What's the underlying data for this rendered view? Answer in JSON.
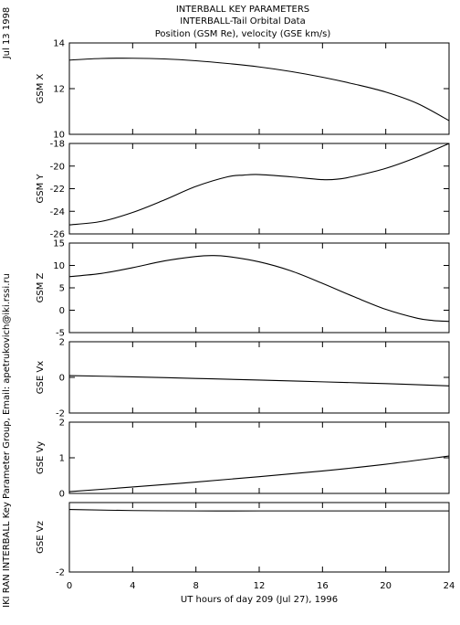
{
  "header": {
    "title_lines": [
      "INTERBALL KEY PARAMETERS",
      "INTERBALL-Tail Orbital Data",
      "Position (GSM Re), velocity (GSE km/s)"
    ],
    "date_label": "Jul 13 1998",
    "credit_label": "IKI RAN INTERBALL Key Parameter Group, Email: apetrukovich@iki.rssi.ru"
  },
  "chart_data": {
    "type": "line",
    "xlabel": "UT hours of day 209 (Jul 27), 1996",
    "xlim": [
      0,
      24
    ],
    "xticks": [
      0,
      4,
      8,
      12,
      16,
      20,
      24
    ],
    "panels": [
      {
        "ylabel": "GSM X",
        "ylim": [
          10,
          14
        ],
        "yticks": [
          10,
          12,
          14
        ],
        "x": [
          0,
          2,
          4,
          6,
          8,
          10,
          12,
          14,
          16,
          18,
          20,
          22,
          24
        ],
        "values": [
          13.25,
          13.32,
          13.33,
          13.3,
          13.22,
          13.1,
          12.95,
          12.75,
          12.5,
          12.2,
          11.85,
          11.35,
          10.6
        ]
      },
      {
        "ylabel": "GSM Y",
        "ylim": [
          -26,
          -18
        ],
        "yticks": [
          -26,
          -24,
          -22,
          -20,
          -18
        ],
        "x": [
          0,
          2,
          4,
          6,
          8,
          10,
          11,
          12,
          14,
          16,
          17,
          18,
          20,
          22,
          24
        ],
        "values": [
          -25.2,
          -24.9,
          -24.1,
          -23.0,
          -21.8,
          -20.95,
          -20.8,
          -20.75,
          -20.95,
          -21.2,
          -21.15,
          -20.9,
          -20.2,
          -19.2,
          -18.0
        ]
      },
      {
        "ylabel": "GSM Z",
        "ylim": [
          -5,
          15
        ],
        "yticks": [
          -5,
          0,
          5,
          10,
          15
        ],
        "x": [
          0,
          2,
          4,
          6,
          8,
          9,
          10,
          12,
          14,
          16,
          18,
          20,
          22,
          23,
          24
        ],
        "values": [
          7.5,
          8.2,
          9.5,
          11.0,
          12.0,
          12.2,
          12.0,
          10.8,
          8.8,
          6.0,
          3.0,
          0.2,
          -1.8,
          -2.3,
          -2.5
        ]
      },
      {
        "ylabel": "GSE Vx",
        "ylim": [
          -2,
          2
        ],
        "yticks": [
          -2,
          0,
          2
        ],
        "x": [
          0,
          4,
          8,
          12,
          16,
          20,
          24
        ],
        "values": [
          0.1,
          0.03,
          -0.06,
          -0.15,
          -0.25,
          -0.35,
          -0.48
        ]
      },
      {
        "ylabel": "GSE Vy",
        "ylim": [
          0,
          2
        ],
        "yticks": [
          0,
          1,
          2
        ],
        "x": [
          0,
          4,
          8,
          12,
          16,
          20,
          24
        ],
        "values": [
          0.05,
          0.18,
          0.32,
          0.47,
          0.63,
          0.82,
          1.05
        ]
      },
      {
        "ylabel": "GSE Vz",
        "ylim": [
          -2,
          0
        ],
        "yticks": [
          -2
        ],
        "x": [
          0,
          4,
          8,
          12,
          16,
          20,
          24
        ],
        "values": [
          -0.2,
          -0.23,
          -0.24,
          -0.24,
          -0.24,
          -0.24,
          -0.24
        ]
      }
    ]
  }
}
